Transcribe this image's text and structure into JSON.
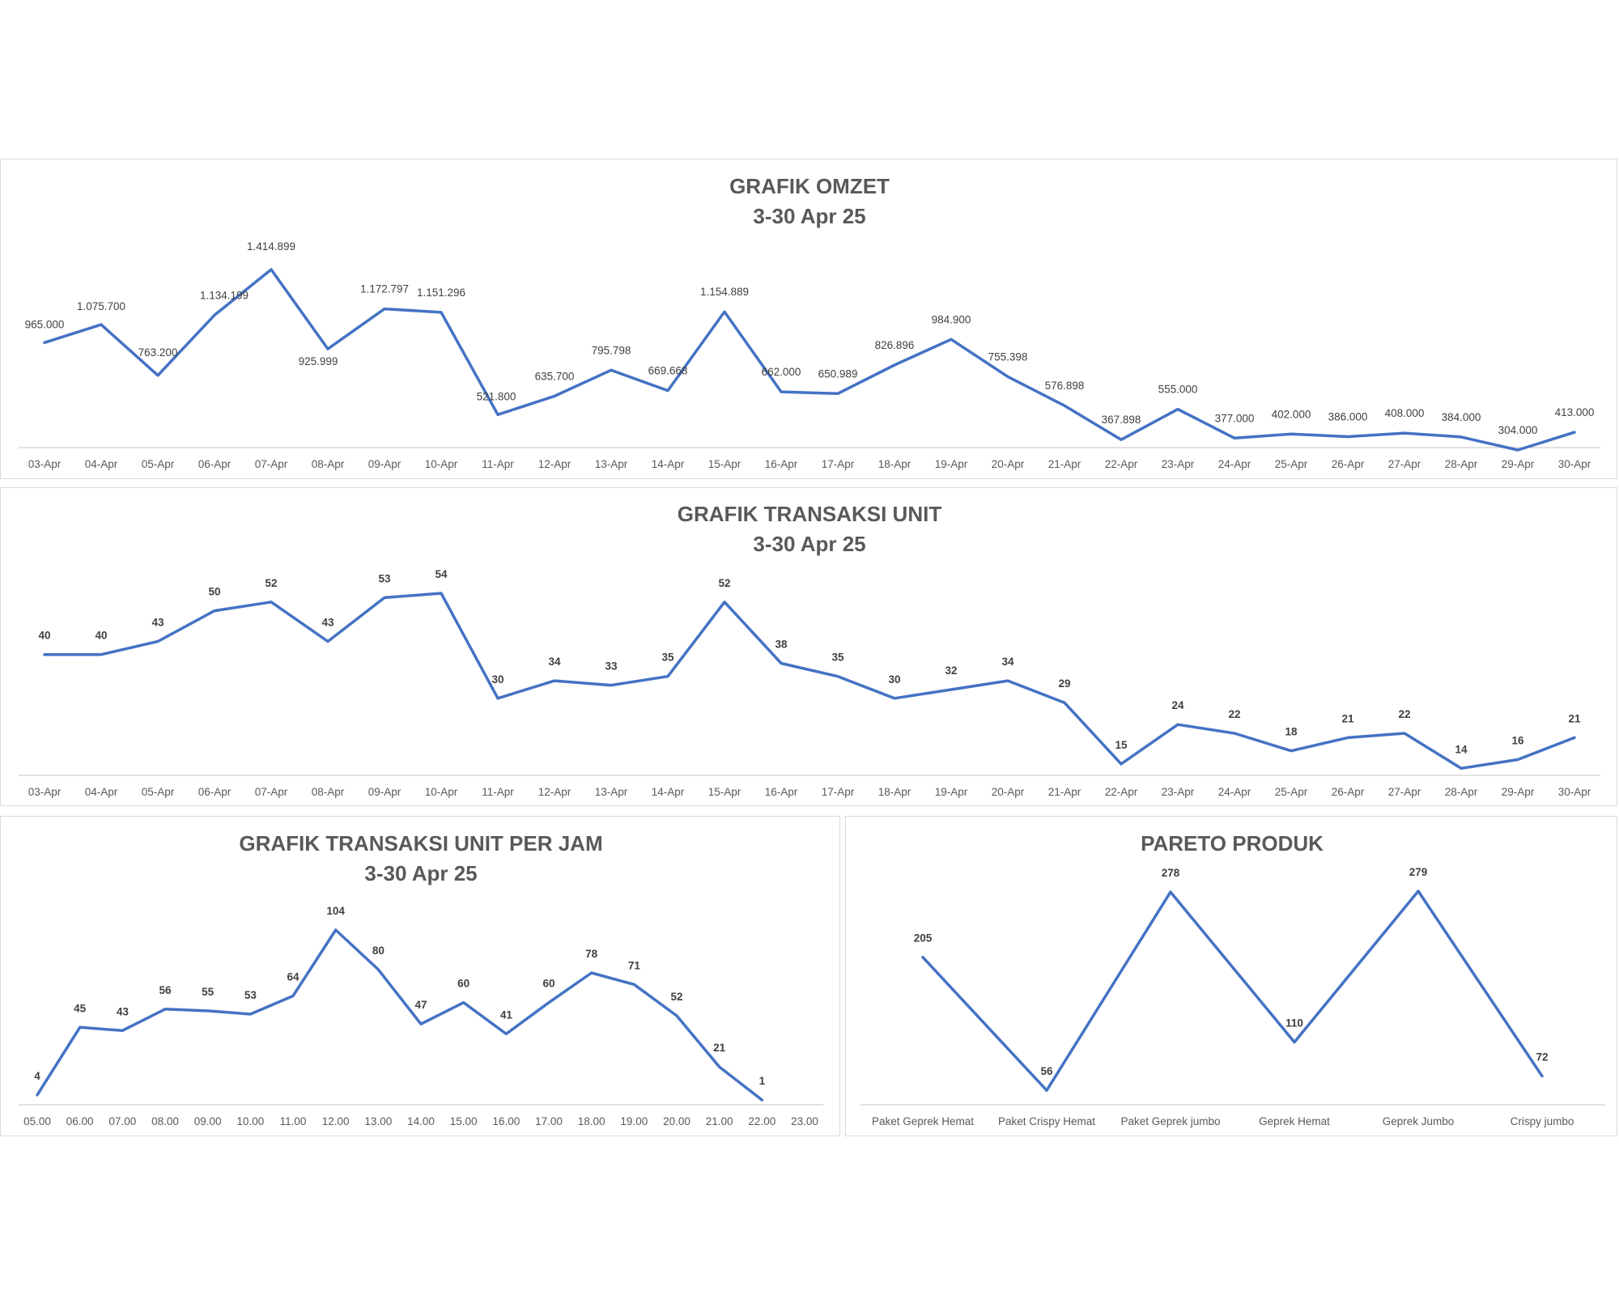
{
  "colors": {
    "series": "#4472c4",
    "title": "#595959",
    "axis": "#d9d9d9"
  },
  "chart_data": [
    {
      "type": "line",
      "title": "GRAFIK OMZET",
      "subtitle": "3-30 Apr 25",
      "categories": [
        "03-Apr",
        "04-Apr",
        "05-Apr",
        "06-Apr",
        "07-Apr",
        "08-Apr",
        "09-Apr",
        "10-Apr",
        "11-Apr",
        "12-Apr",
        "13-Apr",
        "14-Apr",
        "15-Apr",
        "16-Apr",
        "17-Apr",
        "18-Apr",
        "19-Apr",
        "20-Apr",
        "21-Apr",
        "22-Apr",
        "23-Apr",
        "24-Apr",
        "25-Apr",
        "26-Apr",
        "27-Apr",
        "28-Apr",
        "29-Apr",
        "30-Apr"
      ],
      "values": [
        965000,
        1075700,
        763200,
        1134199,
        1414899,
        925999,
        1172797,
        1151296,
        521800,
        635700,
        795798,
        669668,
        1154889,
        662000,
        650989,
        826896,
        984900,
        755398,
        576898,
        367898,
        555000,
        377000,
        402000,
        386000,
        408000,
        384000,
        304000,
        413000
      ],
      "data_labels": [
        "965.000",
        "1.075.700",
        "763.200",
        "1.134.199",
        "1.414.899",
        "925.999",
        "1.172.797",
        "1.151.296",
        "521.800",
        "635.700",
        "795.798",
        "669.668",
        "1.154.889",
        "662.000",
        "650.989",
        "826.896",
        "984.900",
        "755.398",
        "576.898",
        "367.898",
        "555.000",
        "377.000",
        "402.000",
        "386.000",
        "408.000",
        "384.000",
        "304.000",
        "413.000"
      ],
      "ylim": [
        0,
        1500000
      ],
      "grid": false,
      "legend": "none"
    },
    {
      "type": "line",
      "title": "GRAFIK TRANSAKSI UNIT",
      "subtitle": "3-30 Apr 25",
      "categories": [
        "03-Apr",
        "04-Apr",
        "05-Apr",
        "06-Apr",
        "07-Apr",
        "08-Apr",
        "09-Apr",
        "10-Apr",
        "11-Apr",
        "12-Apr",
        "13-Apr",
        "14-Apr",
        "15-Apr",
        "16-Apr",
        "17-Apr",
        "18-Apr",
        "19-Apr",
        "20-Apr",
        "21-Apr",
        "22-Apr",
        "23-Apr",
        "24-Apr",
        "25-Apr",
        "26-Apr",
        "27-Apr",
        "28-Apr",
        "29-Apr",
        "30-Apr"
      ],
      "values": [
        40,
        40,
        43,
        50,
        52,
        43,
        53,
        54,
        30,
        34,
        33,
        35,
        52,
        38,
        35,
        30,
        32,
        34,
        29,
        15,
        24,
        22,
        18,
        21,
        22,
        14,
        16,
        21
      ],
      "data_labels": [
        "40",
        "40",
        "43",
        "50",
        "52",
        "43",
        "53",
        "54",
        "30",
        "34",
        "33",
        "35",
        "52",
        "38",
        "35",
        "30",
        "32",
        "34",
        "29",
        "15",
        "24",
        "22",
        "18",
        "21",
        "22",
        "14",
        "16",
        "21"
      ],
      "ylim": [
        0,
        60
      ],
      "grid": false,
      "legend": "none"
    },
    {
      "type": "line",
      "title": "GRAFIK TRANSAKSI UNIT PER JAM",
      "subtitle": "3-30 Apr 25",
      "categories": [
        "05.00",
        "06.00",
        "07.00",
        "08.00",
        "09.00",
        "10.00",
        "11.00",
        "12.00",
        "13.00",
        "14.00",
        "15.00",
        "16.00",
        "17.00",
        "18.00",
        "19.00",
        "20.00",
        "21.00",
        "22.00",
        "23.00"
      ],
      "values": [
        4,
        45,
        43,
        56,
        55,
        53,
        64,
        104,
        80,
        47,
        60,
        41,
        60,
        78,
        71,
        52,
        21,
        1,
        null
      ],
      "data_labels": [
        "4",
        "45",
        "43",
        "56",
        "55",
        "53",
        "64",
        "104",
        "80",
        "47",
        "60",
        "41",
        "60",
        "78",
        "71",
        "52",
        "21",
        "1",
        ""
      ],
      "ylim": [
        0,
        110
      ],
      "grid": false,
      "legend": "none"
    },
    {
      "type": "line",
      "title": "PARETO PRODUK",
      "subtitle": "",
      "categories": [
        "Paket Geprek Hemat",
        "Paket Crispy Hemat",
        "Paket Geprek jumbo",
        "Geprek Hemat",
        "Geprek Jumbo",
        "Crispy jumbo"
      ],
      "values": [
        205,
        56,
        278,
        110,
        279,
        72
      ],
      "data_labels": [
        "205",
        "56",
        "278",
        "110",
        "279",
        "72"
      ],
      "ylim": [
        0,
        300
      ],
      "grid": false,
      "legend": "none"
    }
  ]
}
